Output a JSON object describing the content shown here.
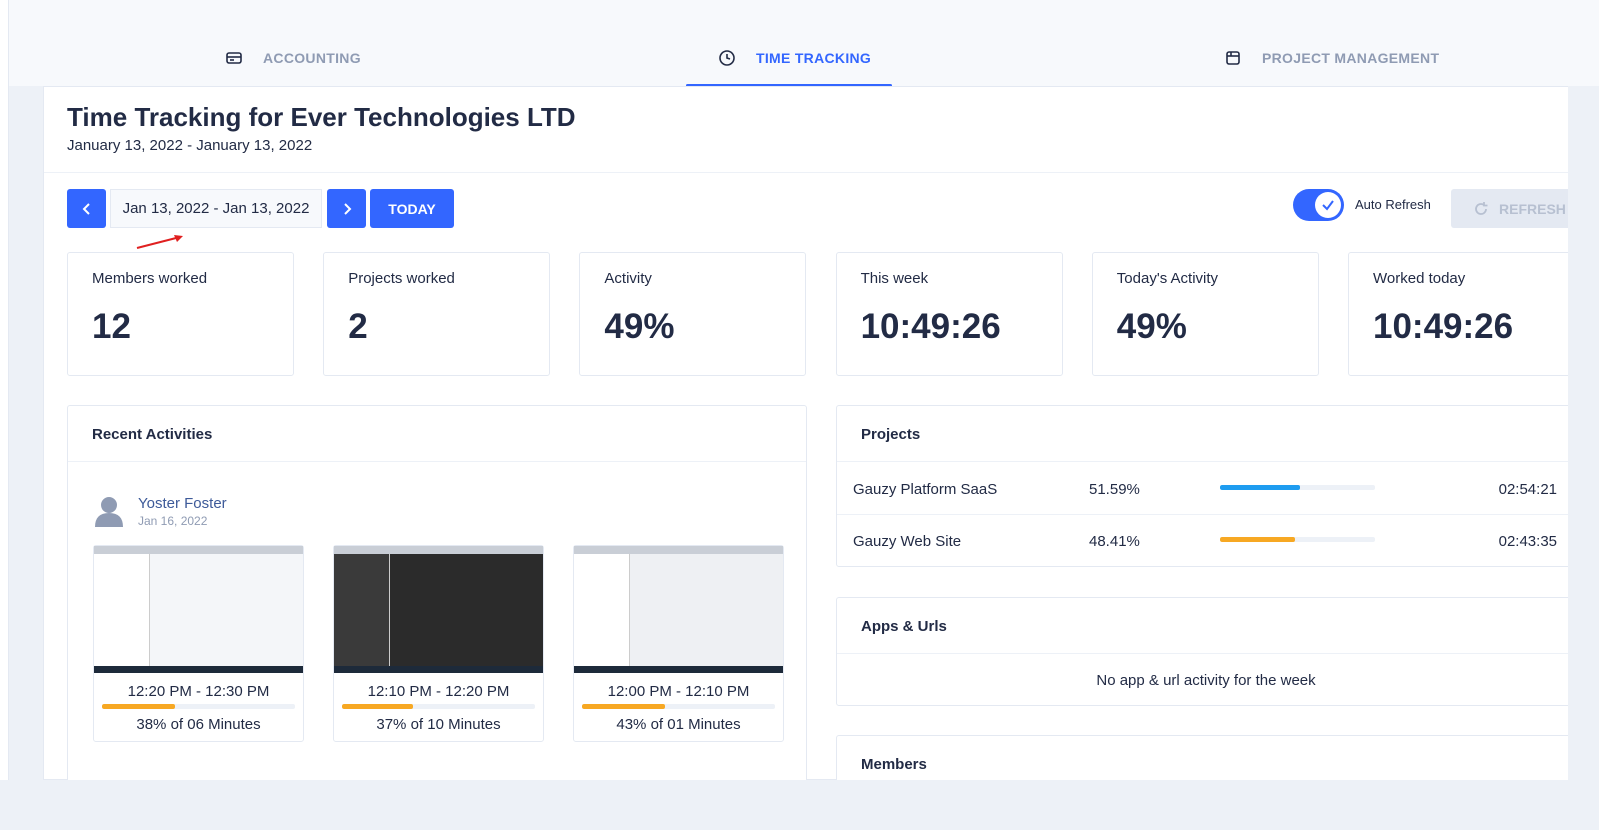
{
  "tabs": [
    {
      "label": "ACCOUNTING",
      "active": false
    },
    {
      "label": "TIME TRACKING",
      "active": true
    },
    {
      "label": "PROJECT MANAGEMENT",
      "active": false
    }
  ],
  "header": {
    "title": "Time Tracking for Ever Technologies LTD",
    "subtitle": "January 13, 2022 - January 13, 2022"
  },
  "toolbar": {
    "date_range": "Jan 13, 2022 - Jan 13, 2022",
    "today": "TODAY",
    "auto_refresh_label": "Auto Refresh",
    "auto_refresh": true,
    "refresh": "REFRESH"
  },
  "stats": [
    {
      "label": "Members worked",
      "value": "12"
    },
    {
      "label": "Projects worked",
      "value": "2"
    },
    {
      "label": "Activity",
      "value": "49%"
    },
    {
      "label": "This week",
      "value": "10:49:26"
    },
    {
      "label": "Today's Activity",
      "value": "49%"
    },
    {
      "label": "Worked today",
      "value": "10:49:26"
    }
  ],
  "recent": {
    "title": "Recent Activities",
    "user": {
      "name": "Yoster Foster",
      "date": "Jan 16, 2022"
    },
    "screenshots": [
      {
        "time": "12:20 PM - 12:30 PM",
        "activity": 38,
        "activity_label": "38% of 06 Minutes"
      },
      {
        "time": "12:10 PM - 12:20 PM",
        "activity": 37,
        "activity_label": "37% of 10 Minutes"
      },
      {
        "time": "12:00 PM - 12:10 PM",
        "activity": 43,
        "activity_label": "43% of 01 Minutes"
      }
    ]
  },
  "projects": {
    "title": "Projects",
    "rows": [
      {
        "name": "Gauzy Platform SaaS",
        "percent": 51.59,
        "percent_label": "51.59%",
        "time": "02:54:21",
        "color": "#1e9cf0"
      },
      {
        "name": "Gauzy Web Site",
        "percent": 48.41,
        "percent_label": "48.41%",
        "time": "02:43:35",
        "color": "#f7a823"
      }
    ]
  },
  "apps": {
    "title": "Apps & Urls",
    "empty": "No app & url activity for the week"
  },
  "members": {
    "title": "Members"
  }
}
